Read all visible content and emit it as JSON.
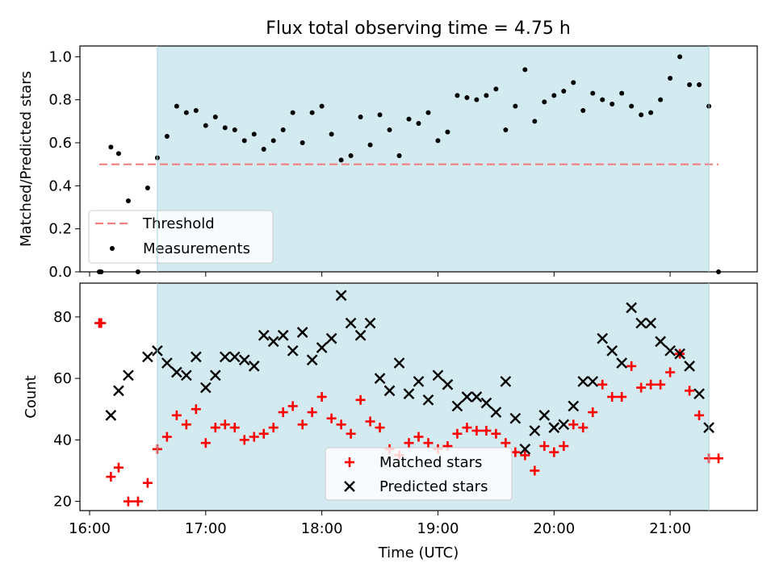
{
  "figure": {
    "title": "Flux total observing time = 4.75 h"
  },
  "colors": {
    "shade": "#d3eaf0",
    "threshold": "#f08080",
    "measurements": "#000000",
    "matched": "#ff0000",
    "predicted": "#000000"
  },
  "chart_data": [
    {
      "type": "scatter",
      "ylabel": "Matched/Predicted stars",
      "xlabel": "",
      "xlim": [
        "15:55",
        "21:45"
      ],
      "ylim": [
        0,
        1.05
      ],
      "yticks": [
        "0.0",
        "0.2",
        "0.4",
        "0.6",
        "0.8",
        "1.0"
      ],
      "shaded_interval": [
        "16:35",
        "21:20"
      ],
      "threshold": {
        "name": "Threshold",
        "value": 0.5,
        "x_range": [
          "16:05",
          "21:25"
        ]
      },
      "legend_position": "lower-left",
      "series": [
        {
          "name": "Measurements",
          "marker": "dot",
          "x": [
            "16:05",
            "16:06",
            "16:11",
            "16:15",
            "16:20",
            "16:25",
            "16:30",
            "16:35",
            "16:40",
            "16:45",
            "16:50",
            "16:55",
            "17:00",
            "17:05",
            "17:10",
            "17:15",
            "17:20",
            "17:25",
            "17:30",
            "17:35",
            "17:40",
            "17:45",
            "17:50",
            "17:55",
            "18:00",
            "18:05",
            "18:10",
            "18:15",
            "18:20",
            "18:25",
            "18:30",
            "18:35",
            "18:40",
            "18:45",
            "18:50",
            "18:55",
            "19:00",
            "19:05",
            "19:10",
            "19:15",
            "19:20",
            "19:25",
            "19:30",
            "19:35",
            "19:40",
            "19:45",
            "19:50",
            "19:55",
            "20:00",
            "20:05",
            "20:10",
            "20:15",
            "20:20",
            "20:25",
            "20:30",
            "20:35",
            "20:40",
            "20:45",
            "20:50",
            "20:55",
            "21:00",
            "21:05",
            "21:10",
            "21:15",
            "21:20",
            "21:25"
          ],
          "y": [
            0.0,
            0.0,
            0.58,
            0.55,
            0.33,
            0.0,
            0.39,
            0.53,
            0.63,
            0.77,
            0.74,
            0.75,
            0.68,
            0.72,
            0.67,
            0.66,
            0.61,
            0.64,
            0.57,
            0.61,
            0.66,
            0.74,
            0.6,
            0.74,
            0.77,
            0.64,
            0.52,
            0.54,
            0.72,
            0.59,
            0.73,
            0.66,
            0.54,
            0.71,
            0.69,
            0.74,
            0.61,
            0.65,
            0.82,
            0.81,
            0.8,
            0.82,
            0.85,
            0.66,
            0.77,
            0.94,
            0.7,
            0.79,
            0.82,
            0.84,
            0.88,
            0.75,
            0.83,
            0.8,
            0.78,
            0.83,
            0.77,
            0.73,
            0.74,
            0.8,
            0.9,
            1.0,
            0.87,
            0.87,
            0.77,
            0.0
          ]
        }
      ]
    },
    {
      "type": "scatter",
      "ylabel": "Count",
      "xlabel": "Time (UTC)",
      "xlim": [
        "15:55",
        "21:45"
      ],
      "ylim": [
        17,
        91
      ],
      "yticks": [
        "20",
        "40",
        "60",
        "80"
      ],
      "xticks": [
        "16:00",
        "17:00",
        "18:00",
        "19:00",
        "20:00",
        "21:00"
      ],
      "shaded_interval": [
        "16:35",
        "21:20"
      ],
      "legend_position": "lower-center",
      "series": [
        {
          "name": "Matched stars",
          "marker": "plus",
          "x": [
            "16:05",
            "16:06",
            "16:11",
            "16:15",
            "16:20",
            "16:25",
            "16:30",
            "16:35",
            "16:40",
            "16:45",
            "16:50",
            "16:55",
            "17:00",
            "17:05",
            "17:10",
            "17:15",
            "17:20",
            "17:25",
            "17:30",
            "17:35",
            "17:40",
            "17:45",
            "17:50",
            "17:55",
            "18:00",
            "18:05",
            "18:10",
            "18:15",
            "18:20",
            "18:25",
            "18:30",
            "18:35",
            "18:40",
            "18:45",
            "18:50",
            "18:55",
            "19:00",
            "19:05",
            "19:10",
            "19:15",
            "19:20",
            "19:25",
            "19:30",
            "19:35",
            "19:40",
            "19:45",
            "19:50",
            "19:55",
            "20:00",
            "20:05",
            "20:10",
            "20:15",
            "20:20",
            "20:25",
            "20:30",
            "20:35",
            "20:40",
            "20:45",
            "20:50",
            "20:55",
            "21:00",
            "21:05",
            "21:10",
            "21:15",
            "21:20",
            "21:25"
          ],
          "y": [
            78,
            78,
            28,
            31,
            20,
            20,
            26,
            37,
            41,
            48,
            45,
            50,
            39,
            44,
            45,
            44,
            40,
            41,
            42,
            44,
            49,
            51,
            45,
            49,
            54,
            47,
            45,
            42,
            53,
            46,
            44,
            37,
            35,
            39,
            41,
            39,
            37,
            38,
            42,
            44,
            43,
            43,
            42,
            39,
            36,
            35,
            30,
            38,
            36,
            38,
            45,
            44,
            49,
            58,
            54,
            54,
            64,
            57,
            58,
            58,
            62,
            68,
            56,
            48,
            34,
            34
          ]
        },
        {
          "name": "Predicted stars",
          "marker": "x",
          "x": [
            "16:11",
            "16:15",
            "16:20",
            "16:30",
            "16:35",
            "16:40",
            "16:45",
            "16:50",
            "16:55",
            "17:00",
            "17:05",
            "17:10",
            "17:15",
            "17:20",
            "17:25",
            "17:30",
            "17:35",
            "17:40",
            "17:45",
            "17:50",
            "17:55",
            "18:00",
            "18:05",
            "18:10",
            "18:15",
            "18:20",
            "18:25",
            "18:30",
            "18:35",
            "18:40",
            "18:45",
            "18:50",
            "18:55",
            "19:00",
            "19:05",
            "19:10",
            "19:15",
            "19:20",
            "19:25",
            "19:30",
            "19:35",
            "19:40",
            "19:45",
            "19:50",
            "19:55",
            "20:00",
            "20:05",
            "20:10",
            "20:15",
            "20:20",
            "20:25",
            "20:30",
            "20:35",
            "20:40",
            "20:45",
            "20:50",
            "20:55",
            "21:00",
            "21:05",
            "21:10",
            "21:15",
            "21:20"
          ],
          "y": [
            48,
            56,
            61,
            67,
            69,
            65,
            62,
            61,
            67,
            57,
            61,
            67,
            67,
            66,
            64,
            74,
            72,
            74,
            69,
            75,
            66,
            70,
            73,
            87,
            78,
            74,
            78,
            60,
            56,
            65,
            55,
            59,
            53,
            61,
            58,
            51,
            54,
            54,
            52,
            49,
            59,
            47,
            37,
            43,
            48,
            44,
            45,
            51,
            59,
            59,
            73,
            69,
            65,
            83,
            78,
            78,
            72,
            69,
            68,
            64,
            55,
            44
          ]
        }
      ]
    }
  ]
}
